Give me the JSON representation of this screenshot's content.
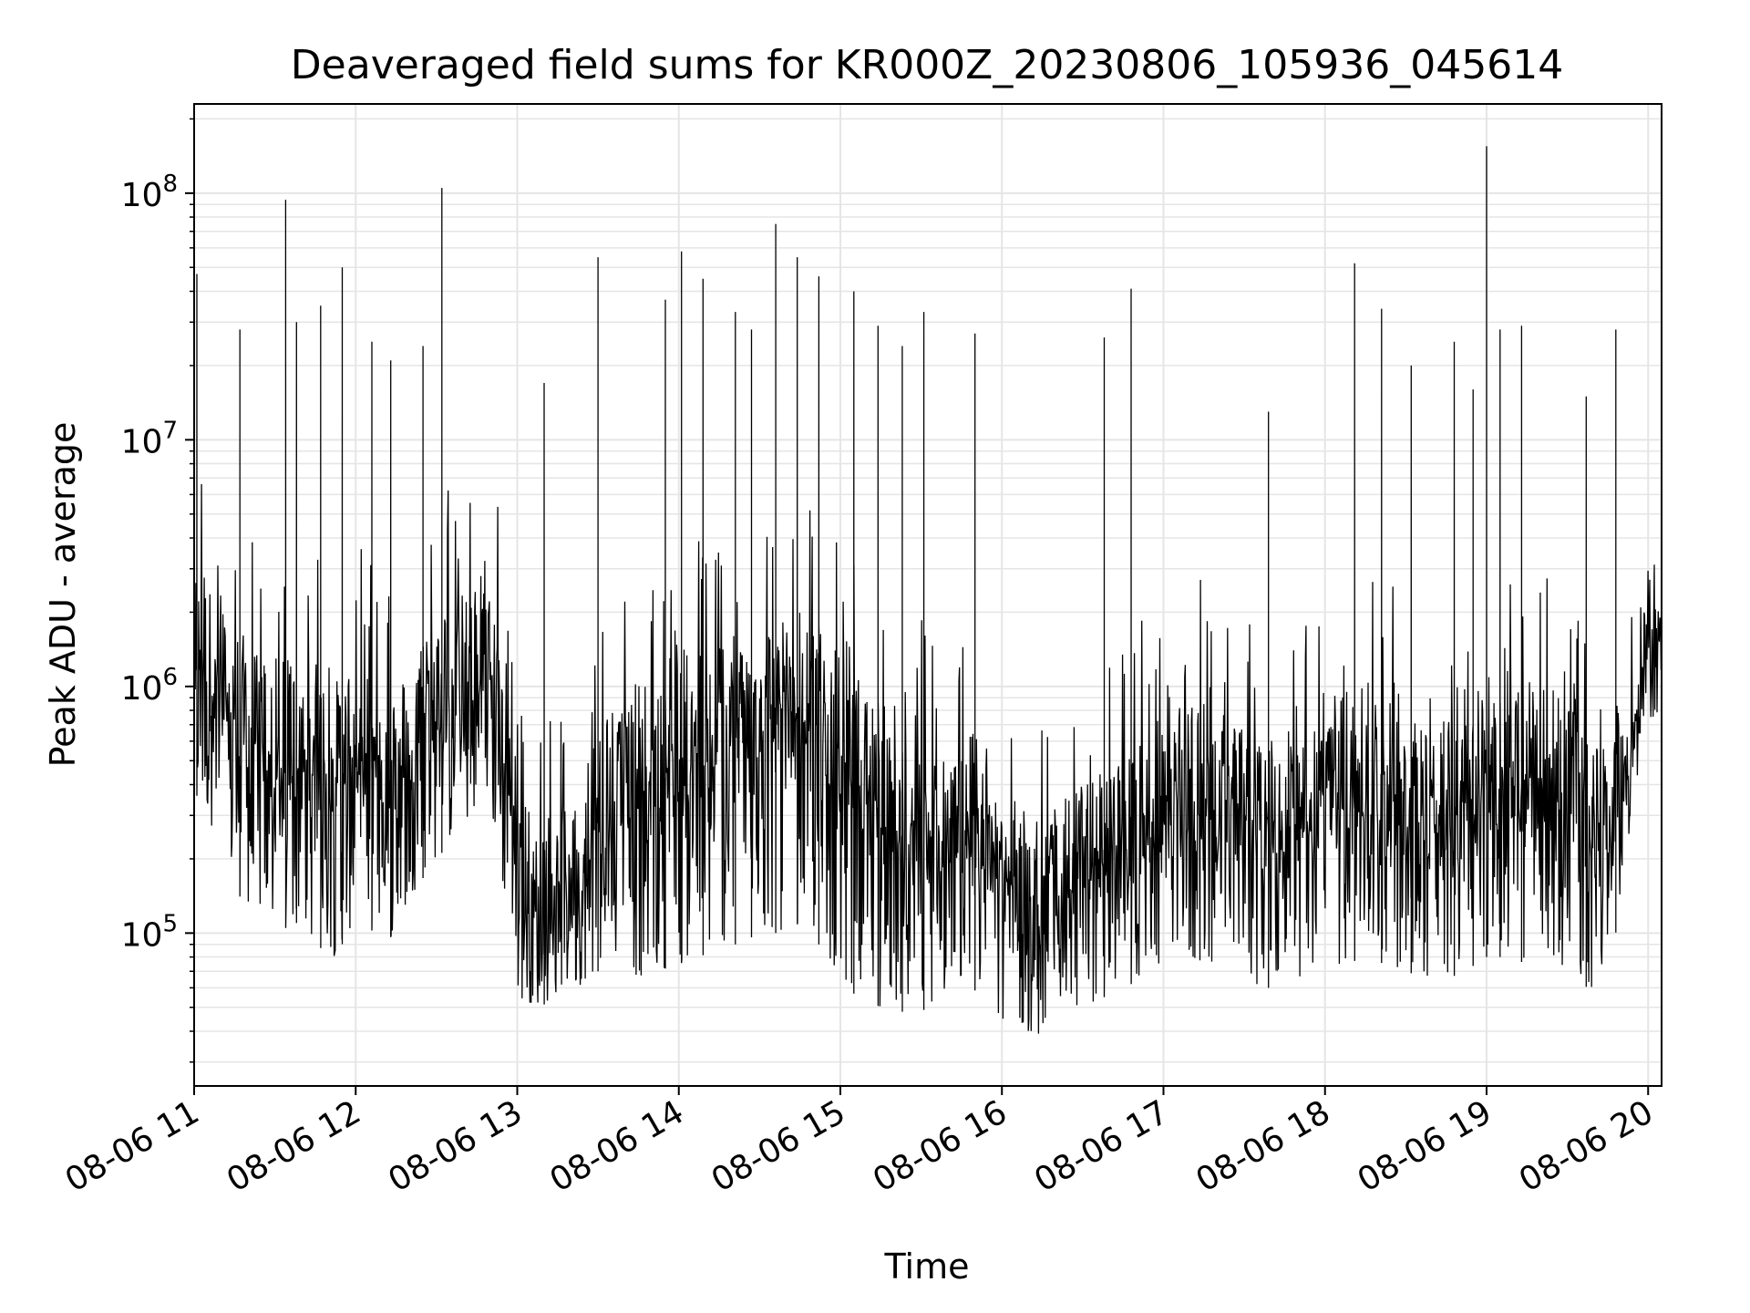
{
  "chart_data": {
    "type": "line",
    "title": "Deaveraged field sums for KR000Z_20230806_105936_045614",
    "xlabel": "Time",
    "ylabel": "Peak ADU - average",
    "yscale": "log",
    "ylim": [
      24000,
      230000000
    ],
    "xlim": [
      "2023-08-06 11:00",
      "2023-08-06 20:05"
    ],
    "x_ticks": [
      {
        "x": "2023-08-06 11:00",
        "label": "08-06 11"
      },
      {
        "x": "2023-08-06 12:00",
        "label": "08-06 12"
      },
      {
        "x": "2023-08-06 13:00",
        "label": "08-06 13"
      },
      {
        "x": "2023-08-06 14:00",
        "label": "08-06 14"
      },
      {
        "x": "2023-08-06 15:00",
        "label": "08-06 15"
      },
      {
        "x": "2023-08-06 16:00",
        "label": "08-06 16"
      },
      {
        "x": "2023-08-06 17:00",
        "label": "08-06 17"
      },
      {
        "x": "2023-08-06 18:00",
        "label": "08-06 18"
      },
      {
        "x": "2023-08-06 19:00",
        "label": "08-06 19"
      },
      {
        "x": "2023-08-06 20:00",
        "label": "08-06 20"
      }
    ],
    "y_ticks": [
      {
        "exp": 5,
        "base": "10",
        "sup": "5"
      },
      {
        "exp": 6,
        "base": "10",
        "sup": "6"
      },
      {
        "exp": 7,
        "base": "10",
        "sup": "7"
      },
      {
        "exp": 8,
        "base": "10",
        "sup": "8"
      }
    ],
    "grid": true,
    "line_color": "#000000",
    "grid_color": "#e5e5e5",
    "series": [
      {
        "x": [
          "2023-08-06 11:00",
          "2023-08-06 11:08",
          "2023-08-06 11:15",
          "2023-08-06 11:22",
          "2023-08-06 11:30",
          "2023-08-06 11:38",
          "2023-08-06 11:45",
          "2023-08-06 11:52",
          "2023-08-06 12:00",
          "2023-08-06 12:08",
          "2023-08-06 12:15",
          "2023-08-06 12:22",
          "2023-08-06 12:30",
          "2023-08-06 12:38",
          "2023-08-06 12:45",
          "2023-08-06 12:52",
          "2023-08-06 13:00",
          "2023-08-06 13:08",
          "2023-08-06 13:15",
          "2023-08-06 13:22",
          "2023-08-06 13:30",
          "2023-08-06 13:38",
          "2023-08-06 13:45",
          "2023-08-06 13:52",
          "2023-08-06 14:00",
          "2023-08-06 14:08",
          "2023-08-06 14:15",
          "2023-08-06 14:22",
          "2023-08-06 14:30",
          "2023-08-06 14:38",
          "2023-08-06 14:45",
          "2023-08-06 14:52",
          "2023-08-06 15:00",
          "2023-08-06 15:08",
          "2023-08-06 15:15",
          "2023-08-06 15:22",
          "2023-08-06 15:30",
          "2023-08-06 15:38",
          "2023-08-06 15:45",
          "2023-08-06 15:52",
          "2023-08-06 16:00",
          "2023-08-06 16:08",
          "2023-08-06 16:15",
          "2023-08-06 16:22",
          "2023-08-06 16:30",
          "2023-08-06 16:38",
          "2023-08-06 16:45",
          "2023-08-06 16:52",
          "2023-08-06 17:00",
          "2023-08-06 17:08",
          "2023-08-06 17:15",
          "2023-08-06 17:22",
          "2023-08-06 17:30",
          "2023-08-06 17:38",
          "2023-08-06 17:45",
          "2023-08-06 17:52",
          "2023-08-06 18:00",
          "2023-08-06 18:08",
          "2023-08-06 18:15",
          "2023-08-06 18:22",
          "2023-08-06 18:30",
          "2023-08-06 18:38",
          "2023-08-06 18:45",
          "2023-08-06 18:52",
          "2023-08-06 19:00",
          "2023-08-06 19:08",
          "2023-08-06 19:15",
          "2023-08-06 19:22",
          "2023-08-06 19:30",
          "2023-08-06 19:38",
          "2023-08-06 19:45",
          "2023-08-06 19:52",
          "2023-08-06 20:00",
          "2023-08-06 20:05"
        ],
        "base_level": [
          1200000,
          900000,
          700000,
          550000,
          500000,
          480000,
          450000,
          400000,
          500000,
          450000,
          380000,
          550000,
          800000,
          900000,
          1000000,
          900000,
          150000,
          120000,
          120000,
          140000,
          300000,
          350000,
          400000,
          350000,
          500000,
          550000,
          650000,
          600000,
          700000,
          750000,
          800000,
          700000,
          500000,
          350000,
          300000,
          250000,
          250000,
          200000,
          200000,
          300000,
          150000,
          120000,
          100000,
          130000,
          160000,
          180000,
          200000,
          250000,
          300000,
          320000,
          350000,
          300000,
          260000,
          250000,
          240000,
          300000,
          350000,
          380000,
          400000,
          350000,
          300000,
          280000,
          280000,
          300000,
          380000,
          400000,
          400000,
          380000,
          350000,
          320000,
          300000,
          350000,
          1300000,
          1250000
        ],
        "spike_times": [
          "2023-08-06 11:01",
          "2023-08-06 11:17",
          "2023-08-06 11:34",
          "2023-08-06 11:38",
          "2023-08-06 11:47",
          "2023-08-06 11:55",
          "2023-08-06 12:06",
          "2023-08-06 12:13",
          "2023-08-06 12:25",
          "2023-08-06 12:32",
          "2023-08-06 13:10",
          "2023-08-06 13:30",
          "2023-08-06 13:55",
          "2023-08-06 14:01",
          "2023-08-06 14:09",
          "2023-08-06 14:21",
          "2023-08-06 14:27",
          "2023-08-06 14:36",
          "2023-08-06 14:44",
          "2023-08-06 14:52",
          "2023-08-06 15:05",
          "2023-08-06 15:14",
          "2023-08-06 15:23",
          "2023-08-06 15:31",
          "2023-08-06 15:50",
          "2023-08-06 16:38",
          "2023-08-06 16:48",
          "2023-08-06 17:39",
          "2023-08-06 18:11",
          "2023-08-06 18:21",
          "2023-08-06 18:32",
          "2023-08-06 18:48",
          "2023-08-06 18:55",
          "2023-08-06 19:00",
          "2023-08-06 19:05",
          "2023-08-06 19:13",
          "2023-08-06 19:37",
          "2023-08-06 19:48"
        ],
        "spike_values": [
          47000000,
          28000000,
          94000000,
          30000000,
          35000000,
          50000000,
          25000000,
          21000000,
          24000000,
          105000000,
          17000000,
          55000000,
          37000000,
          58000000,
          45000000,
          33000000,
          28000000,
          75000000,
          55000000,
          46000000,
          40000000,
          29000000,
          24000000,
          33000000,
          27000000,
          26000000,
          41000000,
          13000000,
          52000000,
          34000000,
          20000000,
          25000000,
          16000000,
          155000000,
          28000000,
          29000000,
          15000000,
          28000000
        ],
        "min_level": [
          380000,
          250000,
          150000,
          120000,
          100000,
          110000,
          90000,
          80000,
          110000,
          100000,
          95000,
          150000,
          200000,
          250000,
          300000,
          250000,
          55000,
          50000,
          55000,
          60000,
          70000,
          75000,
          65000,
          70000,
          75000,
          80000,
          90000,
          90000,
          100000,
          100000,
          110000,
          90000,
          60000,
          55000,
          50000,
          48000,
          48000,
          55000,
          55000,
          60000,
          45000,
          40000,
          38000,
          45000,
          50000,
          55000,
          60000,
          65000,
          70000,
          70000,
          75000,
          70000,
          65000,
          60000,
          60000,
          65000,
          70000,
          75000,
          80000,
          75000,
          70000,
          65000,
          65000,
          70000,
          80000,
          80000,
          75000,
          70000,
          65000,
          60000,
          60000,
          200000,
          700000,
          800000
        ]
      }
    ]
  }
}
